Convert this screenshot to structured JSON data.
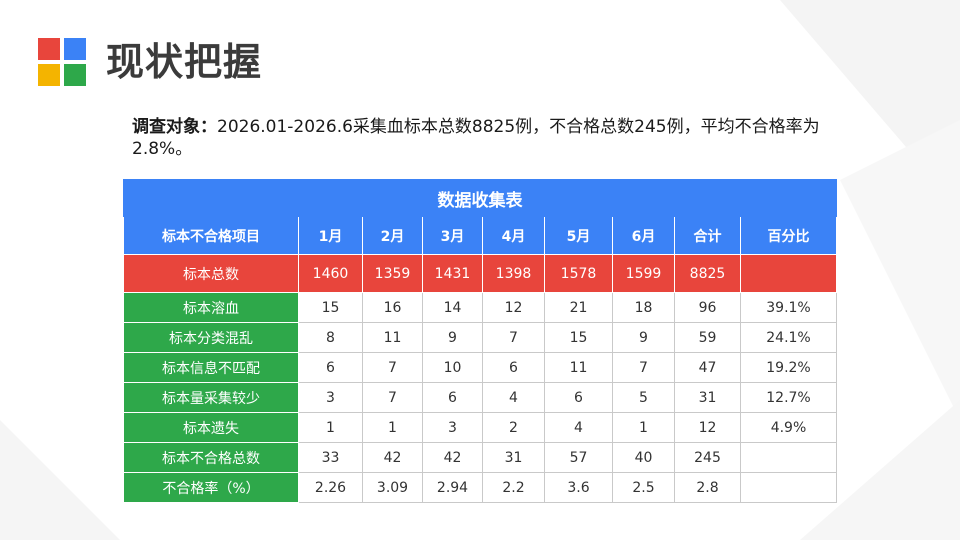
{
  "colors": {
    "logo_red": "#e8453c",
    "logo_blue": "#3b82f6",
    "logo_yellow": "#f4b400",
    "logo_green": "#2ea84a",
    "header_blue": "#3b82f6",
    "total_red": "#e8453c",
    "label_green": "#2ea84a"
  },
  "logo": {
    "icon": "four-squares-logo-icon"
  },
  "page_title": "现状把握",
  "intro": {
    "lead": "调查对象：",
    "text": "2026.01-2026.6采集血标本总数8825例，不合格总数245例，平均不合格率为2.8%。"
  },
  "table": {
    "caption": "数据收集表",
    "headers": [
      "标本不合格项目",
      "1月",
      "2月",
      "3月",
      "4月",
      "5月",
      "6月",
      "合计",
      "百分比"
    ],
    "total_row": {
      "label": "标本总数",
      "values": [
        "1460",
        "1359",
        "1431",
        "1398",
        "1578",
        "1599",
        "8825",
        ""
      ]
    },
    "rows": [
      {
        "label": "标本溶血",
        "values": [
          "15",
          "16",
          "14",
          "12",
          "21",
          "18",
          "96",
          "39.1%"
        ]
      },
      {
        "label": "标本分类混乱",
        "values": [
          "8",
          "11",
          "9",
          "7",
          "15",
          "9",
          "59",
          "24.1%"
        ]
      },
      {
        "label": "标本信息不匹配",
        "values": [
          "6",
          "7",
          "10",
          "6",
          "11",
          "7",
          "47",
          "19.2%"
        ]
      },
      {
        "label": "标本量采集较少",
        "values": [
          "3",
          "7",
          "6",
          "4",
          "6",
          "5",
          "31",
          "12.7%"
        ]
      },
      {
        "label": "标本遗失",
        "values": [
          "1",
          "1",
          "3",
          "2",
          "4",
          "1",
          "12",
          "4.9%"
        ]
      },
      {
        "label": "标本不合格总数",
        "values": [
          "33",
          "42",
          "42",
          "31",
          "57",
          "40",
          "245",
          ""
        ]
      },
      {
        "label": "不合格率（%）",
        "values": [
          "2.26",
          "3.09",
          "2.94",
          "2.2",
          "3.6",
          "2.5",
          "2.8",
          ""
        ]
      }
    ]
  }
}
